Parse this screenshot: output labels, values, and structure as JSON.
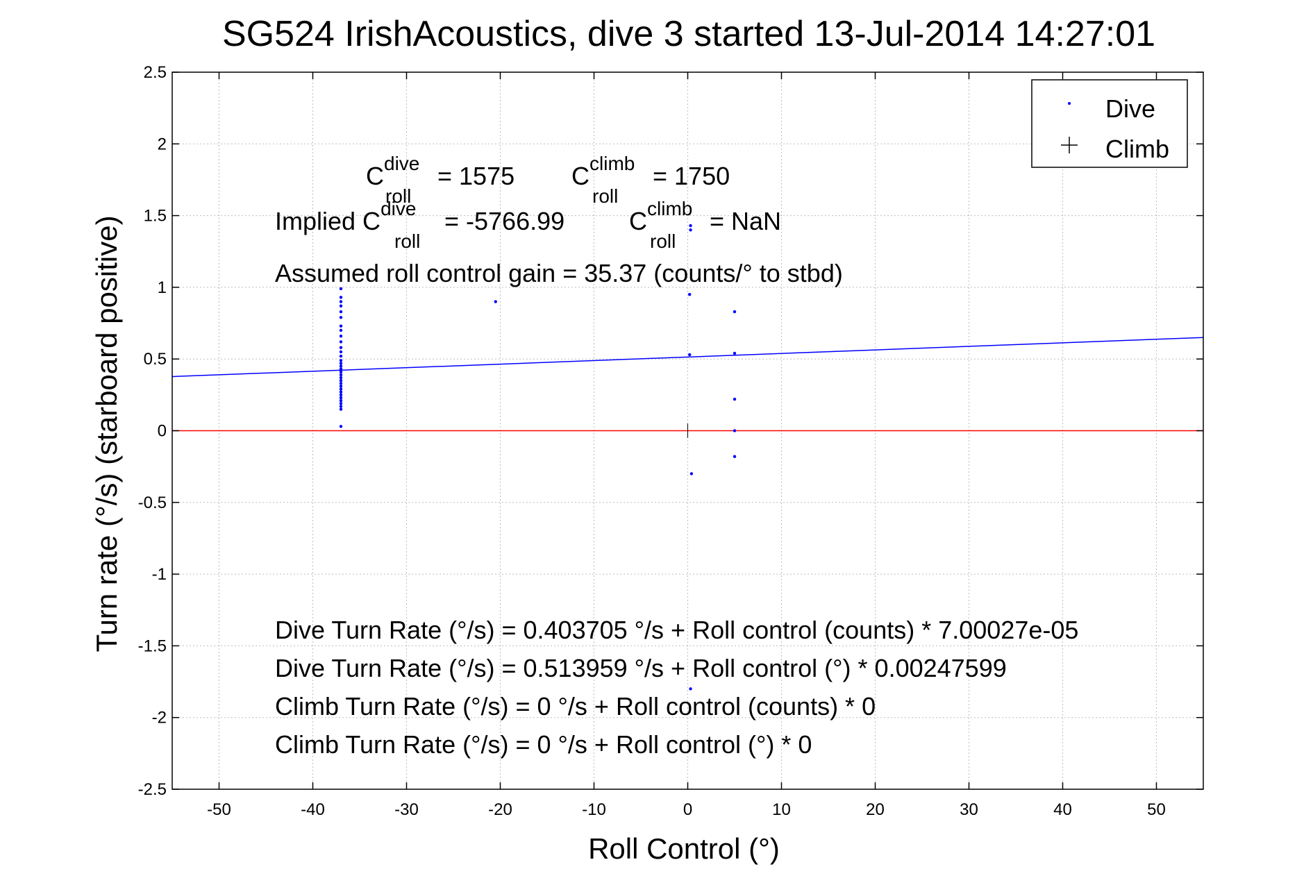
{
  "chart_data": {
    "type": "scatter",
    "title": "SG524 IrishAcoustics, dive 3 started 13-Jul-2014 14:27:01",
    "xlabel": "Roll Control (°)",
    "ylabel": "Turn rate (°/s) (starboard positive)",
    "xlim": [
      -55,
      55
    ],
    "ylim": [
      -2.5,
      2.5
    ],
    "xticks": [
      -50,
      -40,
      -30,
      -20,
      -10,
      0,
      10,
      20,
      30,
      40,
      50
    ],
    "yticks": [
      -2.5,
      -2,
      -1.5,
      -1,
      -0.5,
      0,
      0.5,
      1,
      1.5,
      2,
      2.5
    ],
    "grid": true,
    "legend_position": "top-right",
    "series": [
      {
        "name": "Dive",
        "color": "#0000ff",
        "marker": "dot",
        "points": [
          [
            -37,
            0.03
          ],
          [
            -37,
            0.15
          ],
          [
            -37,
            0.17
          ],
          [
            -37,
            0.19
          ],
          [
            -37,
            0.21
          ],
          [
            -37,
            0.23
          ],
          [
            -37,
            0.25
          ],
          [
            -37,
            0.27
          ],
          [
            -37,
            0.29
          ],
          [
            -37,
            0.31
          ],
          [
            -37,
            0.33
          ],
          [
            -37,
            0.35
          ],
          [
            -37,
            0.37
          ],
          [
            -37,
            0.39
          ],
          [
            -37,
            0.41
          ],
          [
            -37,
            0.43
          ],
          [
            -37,
            0.45
          ],
          [
            -37,
            0.47
          ],
          [
            -37,
            0.49
          ],
          [
            -37,
            0.52
          ],
          [
            -37,
            0.55
          ],
          [
            -37,
            0.58
          ],
          [
            -37,
            0.62
          ],
          [
            -37,
            0.66
          ],
          [
            -37,
            0.7
          ],
          [
            -37,
            0.73
          ],
          [
            -37,
            0.79
          ],
          [
            -37,
            0.83
          ],
          [
            -37,
            0.87
          ],
          [
            -37,
            0.9
          ],
          [
            -37,
            0.93
          ],
          [
            -37,
            0.99
          ],
          [
            -20.5,
            0.9
          ],
          [
            0.2,
            0.95
          ],
          [
            0.2,
            0.53
          ],
          [
            0.3,
            1.43
          ],
          [
            0.3,
            1.4
          ],
          [
            0.4,
            -0.3
          ],
          [
            0.3,
            -1.8
          ],
          [
            5,
            0.83
          ],
          [
            5,
            0.54
          ],
          [
            5,
            0.22
          ],
          [
            5,
            0.0
          ],
          [
            5,
            -0.18
          ]
        ]
      },
      {
        "name": "Climb",
        "color": "#000000",
        "marker": "plus",
        "points": []
      }
    ],
    "lines": [
      {
        "name": "dive-fit",
        "color": "#0000ff",
        "x": [
          -55,
          55
        ],
        "y": [
          0.3776,
          0.6501
        ]
      },
      {
        "name": "zero-line",
        "color": "#ff0000",
        "x": [
          -55,
          55
        ],
        "y": [
          0,
          0
        ]
      }
    ],
    "annotations": {
      "c_dive": {
        "base": "C",
        "sup": "dive",
        "sub": "roll",
        "value": " = 1575"
      },
      "c_climb": {
        "base": "C",
        "sup": "climb",
        "sub": "roll",
        "value": " = 1750"
      },
      "implied_dive": {
        "prefix": "Implied C",
        "sup": "dive",
        "sub": "roll",
        "value": " = -5766.99"
      },
      "implied_climb": {
        "base": "C",
        "sup": "climb",
        "sub": "roll",
        "value": " = NaN"
      },
      "gain": "Assumed roll control gain = 35.37 (counts/° to stbd)",
      "eq1": "Dive Turn Rate (°/s) = 0.403705 °/s + Roll control (counts) * 7.00027e-05",
      "eq2": "Dive Turn Rate (°/s) = 0.513959 °/s + Roll control (°) * 0.00247599",
      "eq3": "Climb Turn Rate (°/s) = 0 °/s + Roll control (counts) * 0",
      "eq4": "Climb Turn Rate (°/s) = 0 °/s + Roll control (°) * 0"
    }
  }
}
